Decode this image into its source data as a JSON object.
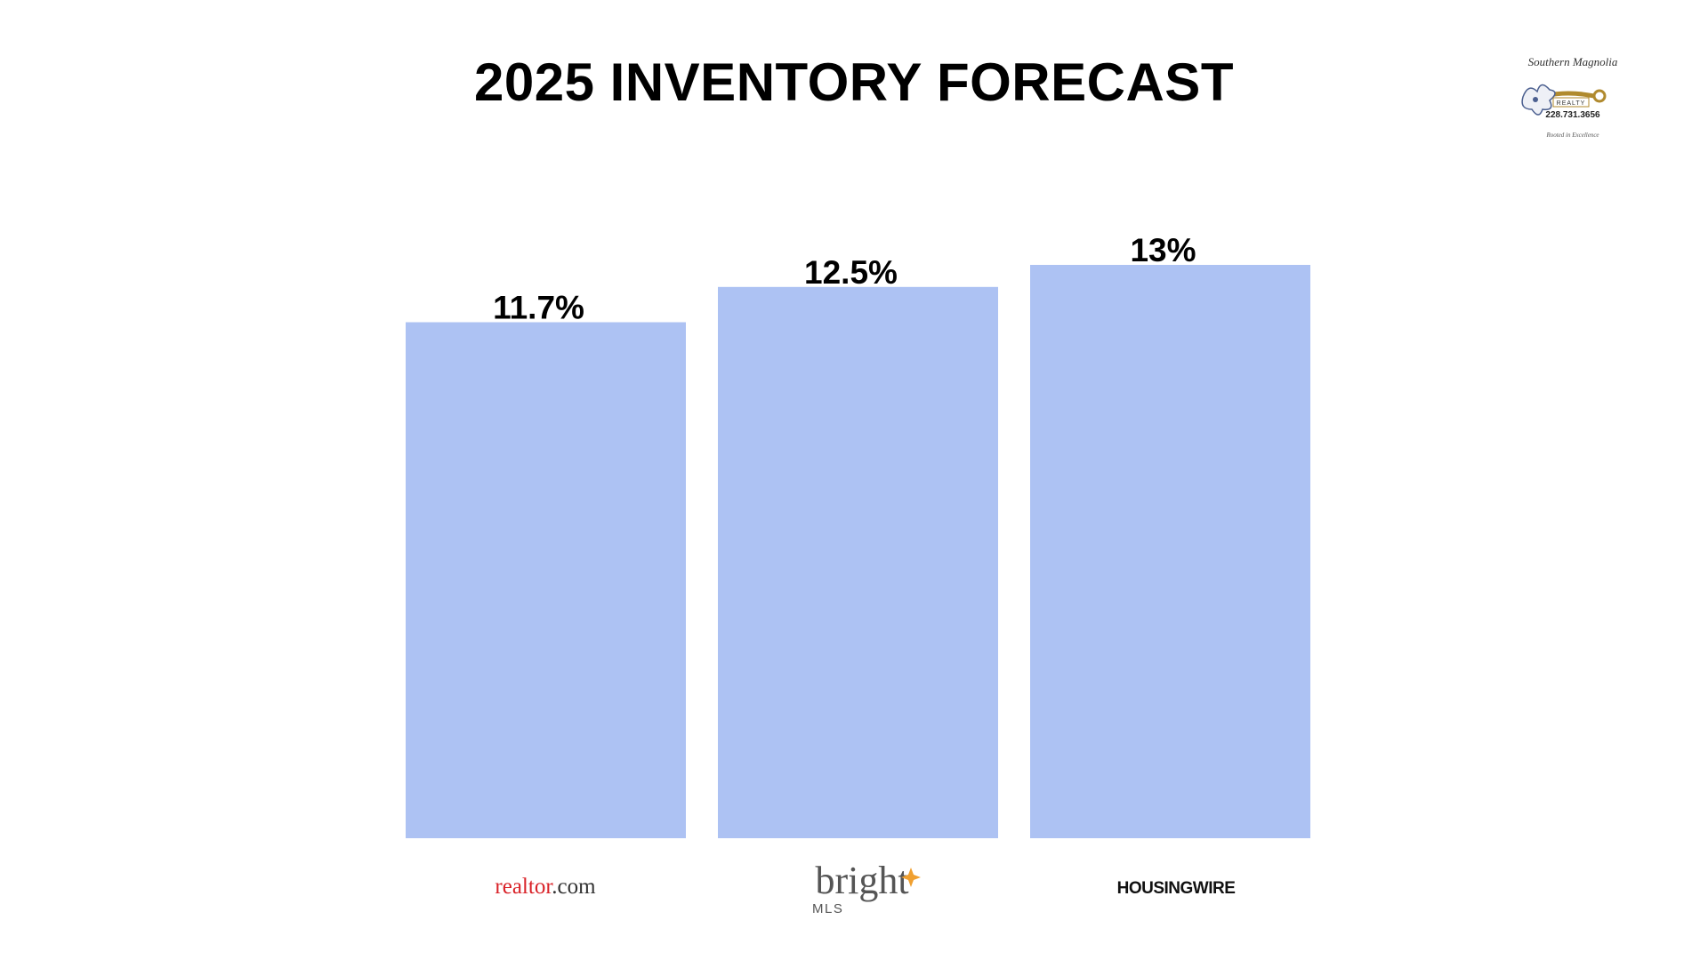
{
  "slide": {
    "title": "2025 INVENTORY FORECAST"
  },
  "brand": {
    "name": "Southern Magnolia",
    "subname": "REALTY",
    "phone": "228.731.3656",
    "tagline": "Rooted in Excellence",
    "icon": "magnolia-flower-key-logo"
  },
  "chart_data": {
    "type": "bar",
    "categories": [
      "realtor.com",
      "Bright MLS",
      "HOUSINGWIRE"
    ],
    "values": [
      11.7,
      12.5,
      13
    ],
    "value_labels": [
      "11.7%",
      "12.5%",
      "13%"
    ],
    "ylim": [
      0,
      13
    ],
    "grid": false,
    "bar_color": "#adc2f3",
    "title": "2025 INVENTORY FORECAST"
  },
  "logos": {
    "realtor": {
      "part1": "real",
      "part2": "tor",
      "part3": ".com",
      "color1": "#d92228",
      "color2": "#333333"
    },
    "bright": {
      "word": "bright",
      "sub": "MLS",
      "spark_color": "#f0a030"
    },
    "housingwire": {
      "word": "HOUSINGWIRE"
    }
  }
}
